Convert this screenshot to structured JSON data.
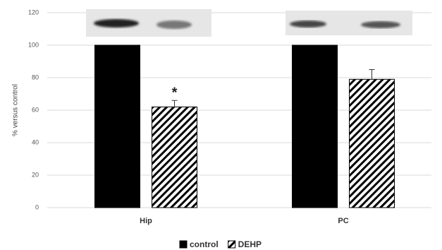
{
  "chart_data": {
    "type": "bar",
    "y_label": "% versus control",
    "categories": [
      "Hip",
      "PC"
    ],
    "series": [
      {
        "name": "control",
        "color": "#000000",
        "values": [
          100,
          100
        ]
      },
      {
        "name": "DEHP",
        "color": "hatch",
        "values": [
          62,
          79
        ],
        "errors": [
          4,
          6
        ]
      }
    ],
    "annotation": "*",
    "ylim": [
      0,
      120
    ],
    "yticks": [
      0,
      20,
      40,
      60,
      80,
      100,
      120
    ],
    "grid": true,
    "legend": "bottom"
  }
}
